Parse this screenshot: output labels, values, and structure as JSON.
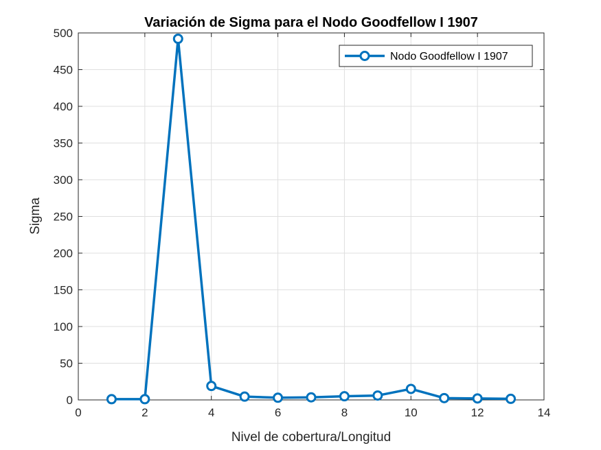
{
  "chart_data": {
    "type": "line",
    "title": "Variación de Sigma para el Nodo Goodfellow I 1907",
    "xlabel": "Nivel de cobertura/Longitud",
    "ylabel": "Sigma",
    "xlim": [
      0,
      14
    ],
    "ylim": [
      0,
      500
    ],
    "xticks": [
      0,
      2,
      4,
      6,
      8,
      10,
      12,
      14
    ],
    "yticks": [
      0,
      50,
      100,
      150,
      200,
      250,
      300,
      350,
      400,
      450,
      500
    ],
    "grid": true,
    "legend_position": "top-right",
    "series": [
      {
        "name": "Nodo Goodfellow I 1907",
        "color": "#0072BD",
        "marker": "circle",
        "x": [
          1,
          2,
          3,
          4,
          5,
          6,
          7,
          8,
          9,
          10,
          11,
          12,
          13
        ],
        "y": [
          1,
          1,
          492,
          19,
          4.5,
          3,
          3.5,
          5,
          6,
          15,
          2.5,
          2,
          1.5
        ]
      }
    ]
  }
}
